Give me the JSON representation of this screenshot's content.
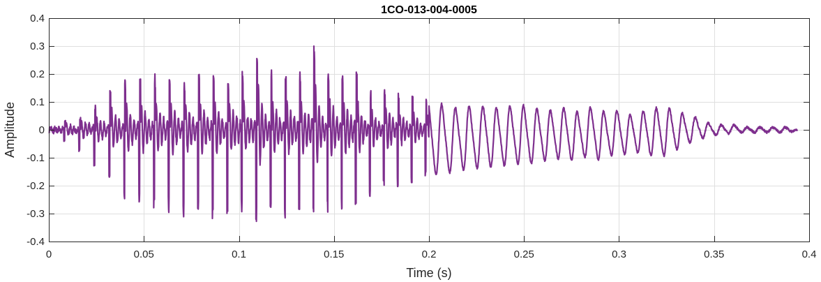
{
  "chart_data": {
    "type": "line",
    "title": "1CO-013-004-0005",
    "xlabel": "Time (s)",
    "ylabel": "Amplitude",
    "xlim": [
      0,
      0.4
    ],
    "ylim": [
      -0.4,
      0.4
    ],
    "xticks": [
      0,
      0.05,
      0.1,
      0.15,
      0.2,
      0.25,
      0.3,
      0.35,
      0.4
    ],
    "xtick_labels": [
      "0",
      "0.05",
      "0.1",
      "0.15",
      "0.2",
      "0.25",
      "0.3",
      "0.35",
      "0.4"
    ],
    "yticks": [
      -0.4,
      -0.3,
      -0.2,
      -0.1,
      0,
      0.1,
      0.2,
      0.3,
      0.4
    ],
    "ytick_labels": [
      "-0.4",
      "-0.3",
      "-0.2",
      "-0.1",
      "0",
      "0.1",
      "0.2",
      "0.3",
      "0.4"
    ],
    "grid": true,
    "line_color": "#7e2f8e",
    "series": [
      {
        "x": [
          0.0,
          0.005,
          0.01,
          0.015,
          0.02,
          0.025,
          0.03,
          0.035,
          0.04,
          0.045,
          0.05,
          0.055,
          0.06,
          0.065,
          0.07,
          0.075,
          0.08,
          0.085,
          0.09,
          0.095,
          0.1,
          0.105,
          0.11,
          0.115,
          0.12,
          0.125,
          0.13,
          0.135,
          0.14,
          0.145,
          0.15,
          0.155,
          0.16,
          0.165,
          0.17,
          0.175,
          0.18,
          0.185,
          0.19,
          0.195,
          0.2,
          0.205,
          0.21,
          0.215,
          0.22,
          0.225,
          0.23,
          0.235,
          0.24,
          0.245,
          0.25,
          0.255,
          0.26,
          0.265,
          0.27,
          0.275,
          0.28,
          0.285,
          0.29,
          0.295,
          0.3,
          0.305,
          0.31,
          0.315,
          0.32,
          0.325,
          0.33,
          0.335,
          0.34,
          0.345,
          0.35,
          0.355,
          0.36,
          0.365,
          0.37,
          0.375,
          0.38,
          0.385,
          0.39,
          0.394
        ],
        "upper": [
          0.01,
          0.02,
          0.04,
          0.03,
          0.08,
          0.09,
          0.13,
          0.16,
          0.18,
          0.2,
          0.19,
          0.2,
          0.2,
          0.21,
          0.17,
          0.2,
          0.2,
          0.22,
          0.2,
          0.18,
          0.25,
          0.15,
          0.33,
          0.22,
          0.21,
          0.2,
          0.22,
          0.2,
          0.32,
          0.19,
          0.25,
          0.2,
          0.24,
          0.17,
          0.14,
          0.12,
          0.2,
          0.12,
          0.13,
          0.1,
          0.12,
          0.11,
          0.1,
          0.09,
          0.1,
          0.09,
          0.1,
          0.09,
          0.1,
          0.09,
          0.1,
          0.09,
          0.08,
          0.08,
          0.09,
          0.08,
          0.07,
          0.09,
          0.08,
          0.07,
          0.08,
          0.06,
          0.07,
          0.08,
          0.09,
          0.09,
          0.08,
          0.06,
          0.05,
          0.03,
          0.02,
          0.02,
          0.02,
          0.01,
          0.01,
          0.01,
          0.01,
          0.01,
          0.01,
          0.0
        ],
        "lower": [
          -0.01,
          -0.04,
          -0.05,
          -0.08,
          -0.1,
          -0.15,
          -0.18,
          -0.22,
          -0.28,
          -0.27,
          -0.27,
          -0.3,
          -0.29,
          -0.3,
          -0.32,
          -0.3,
          -0.3,
          -0.34,
          -0.31,
          -0.3,
          -0.3,
          -0.34,
          -0.33,
          -0.33,
          -0.3,
          -0.32,
          -0.3,
          -0.33,
          -0.35,
          -0.3,
          -0.3,
          -0.28,
          -0.31,
          -0.22,
          -0.25,
          -0.2,
          -0.22,
          -0.2,
          -0.2,
          -0.18,
          -0.17,
          -0.18,
          -0.17,
          -0.15,
          -0.16,
          -0.15,
          -0.14,
          -0.15,
          -0.14,
          -0.13,
          -0.14,
          -0.13,
          -0.12,
          -0.12,
          -0.11,
          -0.12,
          -0.11,
          -0.1,
          -0.12,
          -0.1,
          -0.1,
          -0.09,
          -0.09,
          -0.1,
          -0.11,
          -0.1,
          -0.08,
          -0.06,
          -0.04,
          -0.03,
          -0.02,
          -0.02,
          -0.01,
          -0.01,
          -0.01,
          -0.01,
          -0.01,
          -0.01,
          -0.01,
          0.0
        ]
      }
    ]
  }
}
